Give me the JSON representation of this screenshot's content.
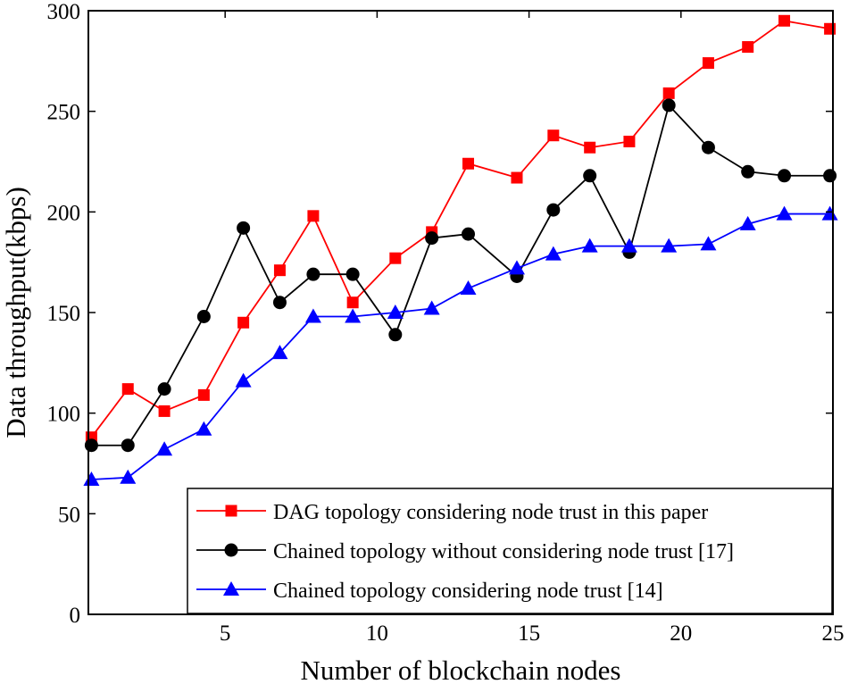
{
  "chart_data": {
    "type": "line",
    "title": "",
    "xlabel": "Number of blockchain nodes",
    "ylabel": "Data throughput(kbps)",
    "xlim": [
      0.5,
      25
    ],
    "ylim": [
      0,
      300
    ],
    "x_ticks": [
      5,
      10,
      15,
      20,
      25
    ],
    "y_ticks": [
      0,
      50,
      100,
      150,
      200,
      250,
      300
    ],
    "grid": false,
    "legend_position": "bottom-right",
    "x": [
      0.6,
      1.8,
      3.0,
      4.3,
      5.6,
      6.8,
      7.9,
      9.2,
      10.6,
      11.8,
      13.0,
      14.6,
      15.8,
      17.0,
      18.3,
      19.6,
      20.9,
      22.2,
      23.4,
      24.9
    ],
    "series": [
      {
        "name": "DAG topology considering node trust in this paper",
        "color": "#ff0000",
        "marker": "square",
        "values": [
          88,
          112,
          101,
          109,
          145,
          171,
          198,
          155,
          177,
          190,
          224,
          217,
          238,
          232,
          235,
          259,
          274,
          282,
          295,
          291
        ]
      },
      {
        "name": "Chained topology without considering node trust [17]",
        "color": "#000000",
        "marker": "circle",
        "values": [
          84,
          84,
          112,
          148,
          192,
          155,
          169,
          169,
          139,
          187,
          189,
          168,
          201,
          218,
          180,
          253,
          232,
          220,
          218,
          218
        ]
      },
      {
        "name": "Chained topology considering node trust [14]",
        "color": "#0000ff",
        "marker": "triangle",
        "values": [
          67,
          68,
          82,
          92,
          116,
          130,
          148,
          148,
          150,
          152,
          162,
          172,
          179,
          183,
          183,
          183,
          184,
          194,
          199,
          199
        ]
      }
    ]
  }
}
